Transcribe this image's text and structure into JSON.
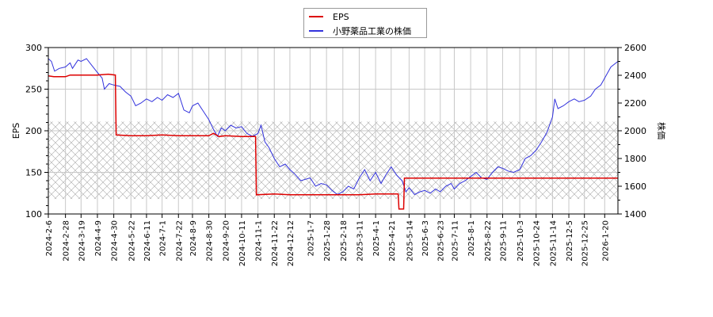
{
  "chart_data": {
    "type": "line",
    "title": "",
    "legend": {
      "position": "top-center",
      "entries": [
        {
          "label": "EPS",
          "color": "#dd0000"
        },
        {
          "label": "小野薬品工業の株価",
          "color": "#3333dd"
        }
      ]
    },
    "xlabel": "",
    "ylabel_left": "EPS",
    "ylabel_right": "株価",
    "ylim_left": [
      100,
      300
    ],
    "ylim_right": [
      1400,
      2600
    ],
    "yticks_left": [
      100,
      150,
      200,
      250,
      300
    ],
    "yticks_right": [
      1400,
      1600,
      1800,
      2000,
      2200,
      2400,
      2600
    ],
    "grid": true,
    "hatched_band_eps": [
      118,
      211
    ],
    "x_tick_labels": [
      "2024-2-6",
      "2024-2-28",
      "2024-3-19",
      "2024-4-9",
      "2024-4-30",
      "2024-5-22",
      "2024-6-11",
      "2024-7-1",
      "2024-7-22",
      "2024-8-9",
      "2024-8-30",
      "2024-9-20",
      "2024-10-11",
      "2024-11-1",
      "2024-11-22",
      "2024-12-12",
      "2025-1-7",
      "2025-1-28",
      "2025-2-18",
      "2025-3-11",
      "2025-4-1",
      "2025-4-21",
      "2025-5-14",
      "2025-6-3",
      "2025-6-23",
      "2025-7-11",
      "2025-8-1",
      "2025-8-22",
      "2025-9-11",
      "2025-10-3",
      "2025-10-24",
      "2025-11-14",
      "2025-12-5",
      "2025-12-25",
      "2026-1-20"
    ],
    "series": [
      {
        "name": "EPS",
        "axis": "left",
        "color": "#dd0000",
        "points": [
          [
            "2024-2-6",
            266
          ],
          [
            "2024-2-13",
            265
          ],
          [
            "2024-2-28",
            265
          ],
          [
            "2024-3-5",
            267
          ],
          [
            "2024-3-19",
            267
          ],
          [
            "2024-4-9",
            267
          ],
          [
            "2024-4-23",
            268
          ],
          [
            "2024-5-2",
            267
          ],
          [
            "2024-5-3",
            195
          ],
          [
            "2024-5-22",
            194
          ],
          [
            "2024-6-11",
            194
          ],
          [
            "2024-7-1",
            195
          ],
          [
            "2024-7-22",
            194
          ],
          [
            "2024-8-9",
            194
          ],
          [
            "2024-8-30",
            194
          ],
          [
            "2024-9-5",
            197
          ],
          [
            "2024-9-12",
            193
          ],
          [
            "2024-9-20",
            194
          ],
          [
            "2024-10-11",
            193
          ],
          [
            "2024-10-29",
            193
          ],
          [
            "2024-10-30",
            123
          ],
          [
            "2024-11-22",
            124
          ],
          [
            "2024-12-12",
            123
          ],
          [
            "2025-1-7",
            123
          ],
          [
            "2025-1-28",
            123
          ],
          [
            "2025-2-18",
            123
          ],
          [
            "2025-3-11",
            123
          ],
          [
            "2025-4-1",
            124
          ],
          [
            "2025-4-21",
            124
          ],
          [
            "2025-4-30",
            124
          ],
          [
            "2025-5-1",
            106
          ],
          [
            "2025-5-7",
            106
          ],
          [
            "2025-5-8",
            143
          ],
          [
            "2025-6-3",
            143
          ],
          [
            "2025-6-23",
            143
          ],
          [
            "2025-7-11",
            143
          ],
          [
            "2025-8-1",
            143
          ],
          [
            "2025-8-22",
            143
          ],
          [
            "2025-9-11",
            143
          ],
          [
            "2025-10-3",
            143
          ],
          [
            "2025-10-24",
            143
          ],
          [
            "2025-11-14",
            143
          ],
          [
            "2025-12-5",
            143
          ],
          [
            "2025-12-25",
            143
          ],
          [
            "2026-1-20",
            143
          ],
          [
            "2026-2-6",
            143
          ]
        ]
      },
      {
        "name": "小野薬品工業の株価",
        "axis": "right",
        "color": "#3333dd",
        "points": [
          [
            "2024-2-6",
            2520
          ],
          [
            "2024-2-10",
            2500
          ],
          [
            "2024-2-14",
            2430
          ],
          [
            "2024-2-20",
            2450
          ],
          [
            "2024-2-28",
            2460
          ],
          [
            "2024-3-5",
            2490
          ],
          [
            "2024-3-8",
            2450
          ],
          [
            "2024-3-15",
            2510
          ],
          [
            "2024-3-19",
            2500
          ],
          [
            "2024-3-26",
            2520
          ],
          [
            "2024-4-2",
            2470
          ],
          [
            "2024-4-9",
            2420
          ],
          [
            "2024-4-15",
            2380
          ],
          [
            "2024-4-18",
            2300
          ],
          [
            "2024-4-24",
            2340
          ],
          [
            "2024-4-30",
            2330
          ],
          [
            "2024-5-8",
            2320
          ],
          [
            "2024-5-15",
            2280
          ],
          [
            "2024-5-22",
            2250
          ],
          [
            "2024-5-28",
            2180
          ],
          [
            "2024-6-4",
            2200
          ],
          [
            "2024-6-11",
            2230
          ],
          [
            "2024-6-18",
            2210
          ],
          [
            "2024-6-25",
            2240
          ],
          [
            "2024-7-1",
            2220
          ],
          [
            "2024-7-8",
            2260
          ],
          [
            "2024-7-15",
            2240
          ],
          [
            "2024-7-22",
            2270
          ],
          [
            "2024-7-29",
            2150
          ],
          [
            "2024-8-5",
            2130
          ],
          [
            "2024-8-9",
            2180
          ],
          [
            "2024-8-16",
            2200
          ],
          [
            "2024-8-23",
            2140
          ],
          [
            "2024-8-30",
            2080
          ],
          [
            "2024-9-5",
            2010
          ],
          [
            "2024-9-10",
            1960
          ],
          [
            "2024-9-15",
            2020
          ],
          [
            "2024-9-20",
            2000
          ],
          [
            "2024-9-27",
            2040
          ],
          [
            "2024-10-4",
            2020
          ],
          [
            "2024-10-11",
            2030
          ],
          [
            "2024-10-18",
            1980
          ],
          [
            "2024-10-25",
            1960
          ],
          [
            "2024-11-1",
            1980
          ],
          [
            "2024-11-5",
            2040
          ],
          [
            "2024-11-10",
            1920
          ],
          [
            "2024-11-15",
            1880
          ],
          [
            "2024-11-22",
            1800
          ],
          [
            "2024-11-29",
            1740
          ],
          [
            "2024-12-6",
            1760
          ],
          [
            "2024-12-12",
            1720
          ],
          [
            "2024-12-18",
            1690
          ],
          [
            "2024-12-26",
            1640
          ],
          [
            "2025-1-7",
            1660
          ],
          [
            "2025-1-14",
            1600
          ],
          [
            "2025-1-21",
            1620
          ],
          [
            "2025-1-28",
            1610
          ],
          [
            "2025-2-4",
            1570
          ],
          [
            "2025-2-11",
            1540
          ],
          [
            "2025-2-18",
            1560
          ],
          [
            "2025-2-25",
            1600
          ],
          [
            "2025-3-4",
            1580
          ],
          [
            "2025-3-11",
            1660
          ],
          [
            "2025-3-18",
            1720
          ],
          [
            "2025-3-25",
            1640
          ],
          [
            "2025-4-1",
            1700
          ],
          [
            "2025-4-8",
            1620
          ],
          [
            "2025-4-14",
            1680
          ],
          [
            "2025-4-21",
            1740
          ],
          [
            "2025-4-28",
            1680
          ],
          [
            "2025-5-5",
            1640
          ],
          [
            "2025-5-10",
            1560
          ],
          [
            "2025-5-14",
            1590
          ],
          [
            "2025-5-21",
            1540
          ],
          [
            "2025-5-28",
            1560
          ],
          [
            "2025-6-3",
            1570
          ],
          [
            "2025-6-10",
            1550
          ],
          [
            "2025-6-17",
            1580
          ],
          [
            "2025-6-23",
            1560
          ],
          [
            "2025-6-30",
            1600
          ],
          [
            "2025-7-7",
            1620
          ],
          [
            "2025-7-11",
            1580
          ],
          [
            "2025-7-18",
            1620
          ],
          [
            "2025-7-25",
            1640
          ],
          [
            "2025-8-1",
            1670
          ],
          [
            "2025-8-8",
            1700
          ],
          [
            "2025-8-15",
            1660
          ],
          [
            "2025-8-22",
            1650
          ],
          [
            "2025-8-29",
            1700
          ],
          [
            "2025-9-5",
            1740
          ],
          [
            "2025-9-11",
            1730
          ],
          [
            "2025-9-18",
            1710
          ],
          [
            "2025-9-25",
            1700
          ],
          [
            "2025-10-3",
            1720
          ],
          [
            "2025-10-10",
            1800
          ],
          [
            "2025-10-17",
            1820
          ],
          [
            "2025-10-24",
            1860
          ],
          [
            "2025-10-31",
            1920
          ],
          [
            "2025-11-7",
            1990
          ],
          [
            "2025-11-14",
            2100
          ],
          [
            "2025-11-17",
            2230
          ],
          [
            "2025-11-21",
            2160
          ],
          [
            "2025-11-28",
            2180
          ],
          [
            "2025-12-5",
            2210
          ],
          [
            "2025-12-12",
            2230
          ],
          [
            "2025-12-18",
            2210
          ],
          [
            "2025-12-25",
            2220
          ],
          [
            "2026-1-2",
            2250
          ],
          [
            "2026-1-8",
            2300
          ],
          [
            "2026-1-15",
            2330
          ],
          [
            "2026-1-20",
            2380
          ],
          [
            "2026-1-28",
            2460
          ],
          [
            "2026-2-6",
            2500
          ]
        ]
      }
    ]
  },
  "legend": {
    "eps_label": "EPS",
    "price_label": "小野薬品工業の株価"
  },
  "axes": {
    "left_label": "EPS",
    "right_label": "株価"
  }
}
